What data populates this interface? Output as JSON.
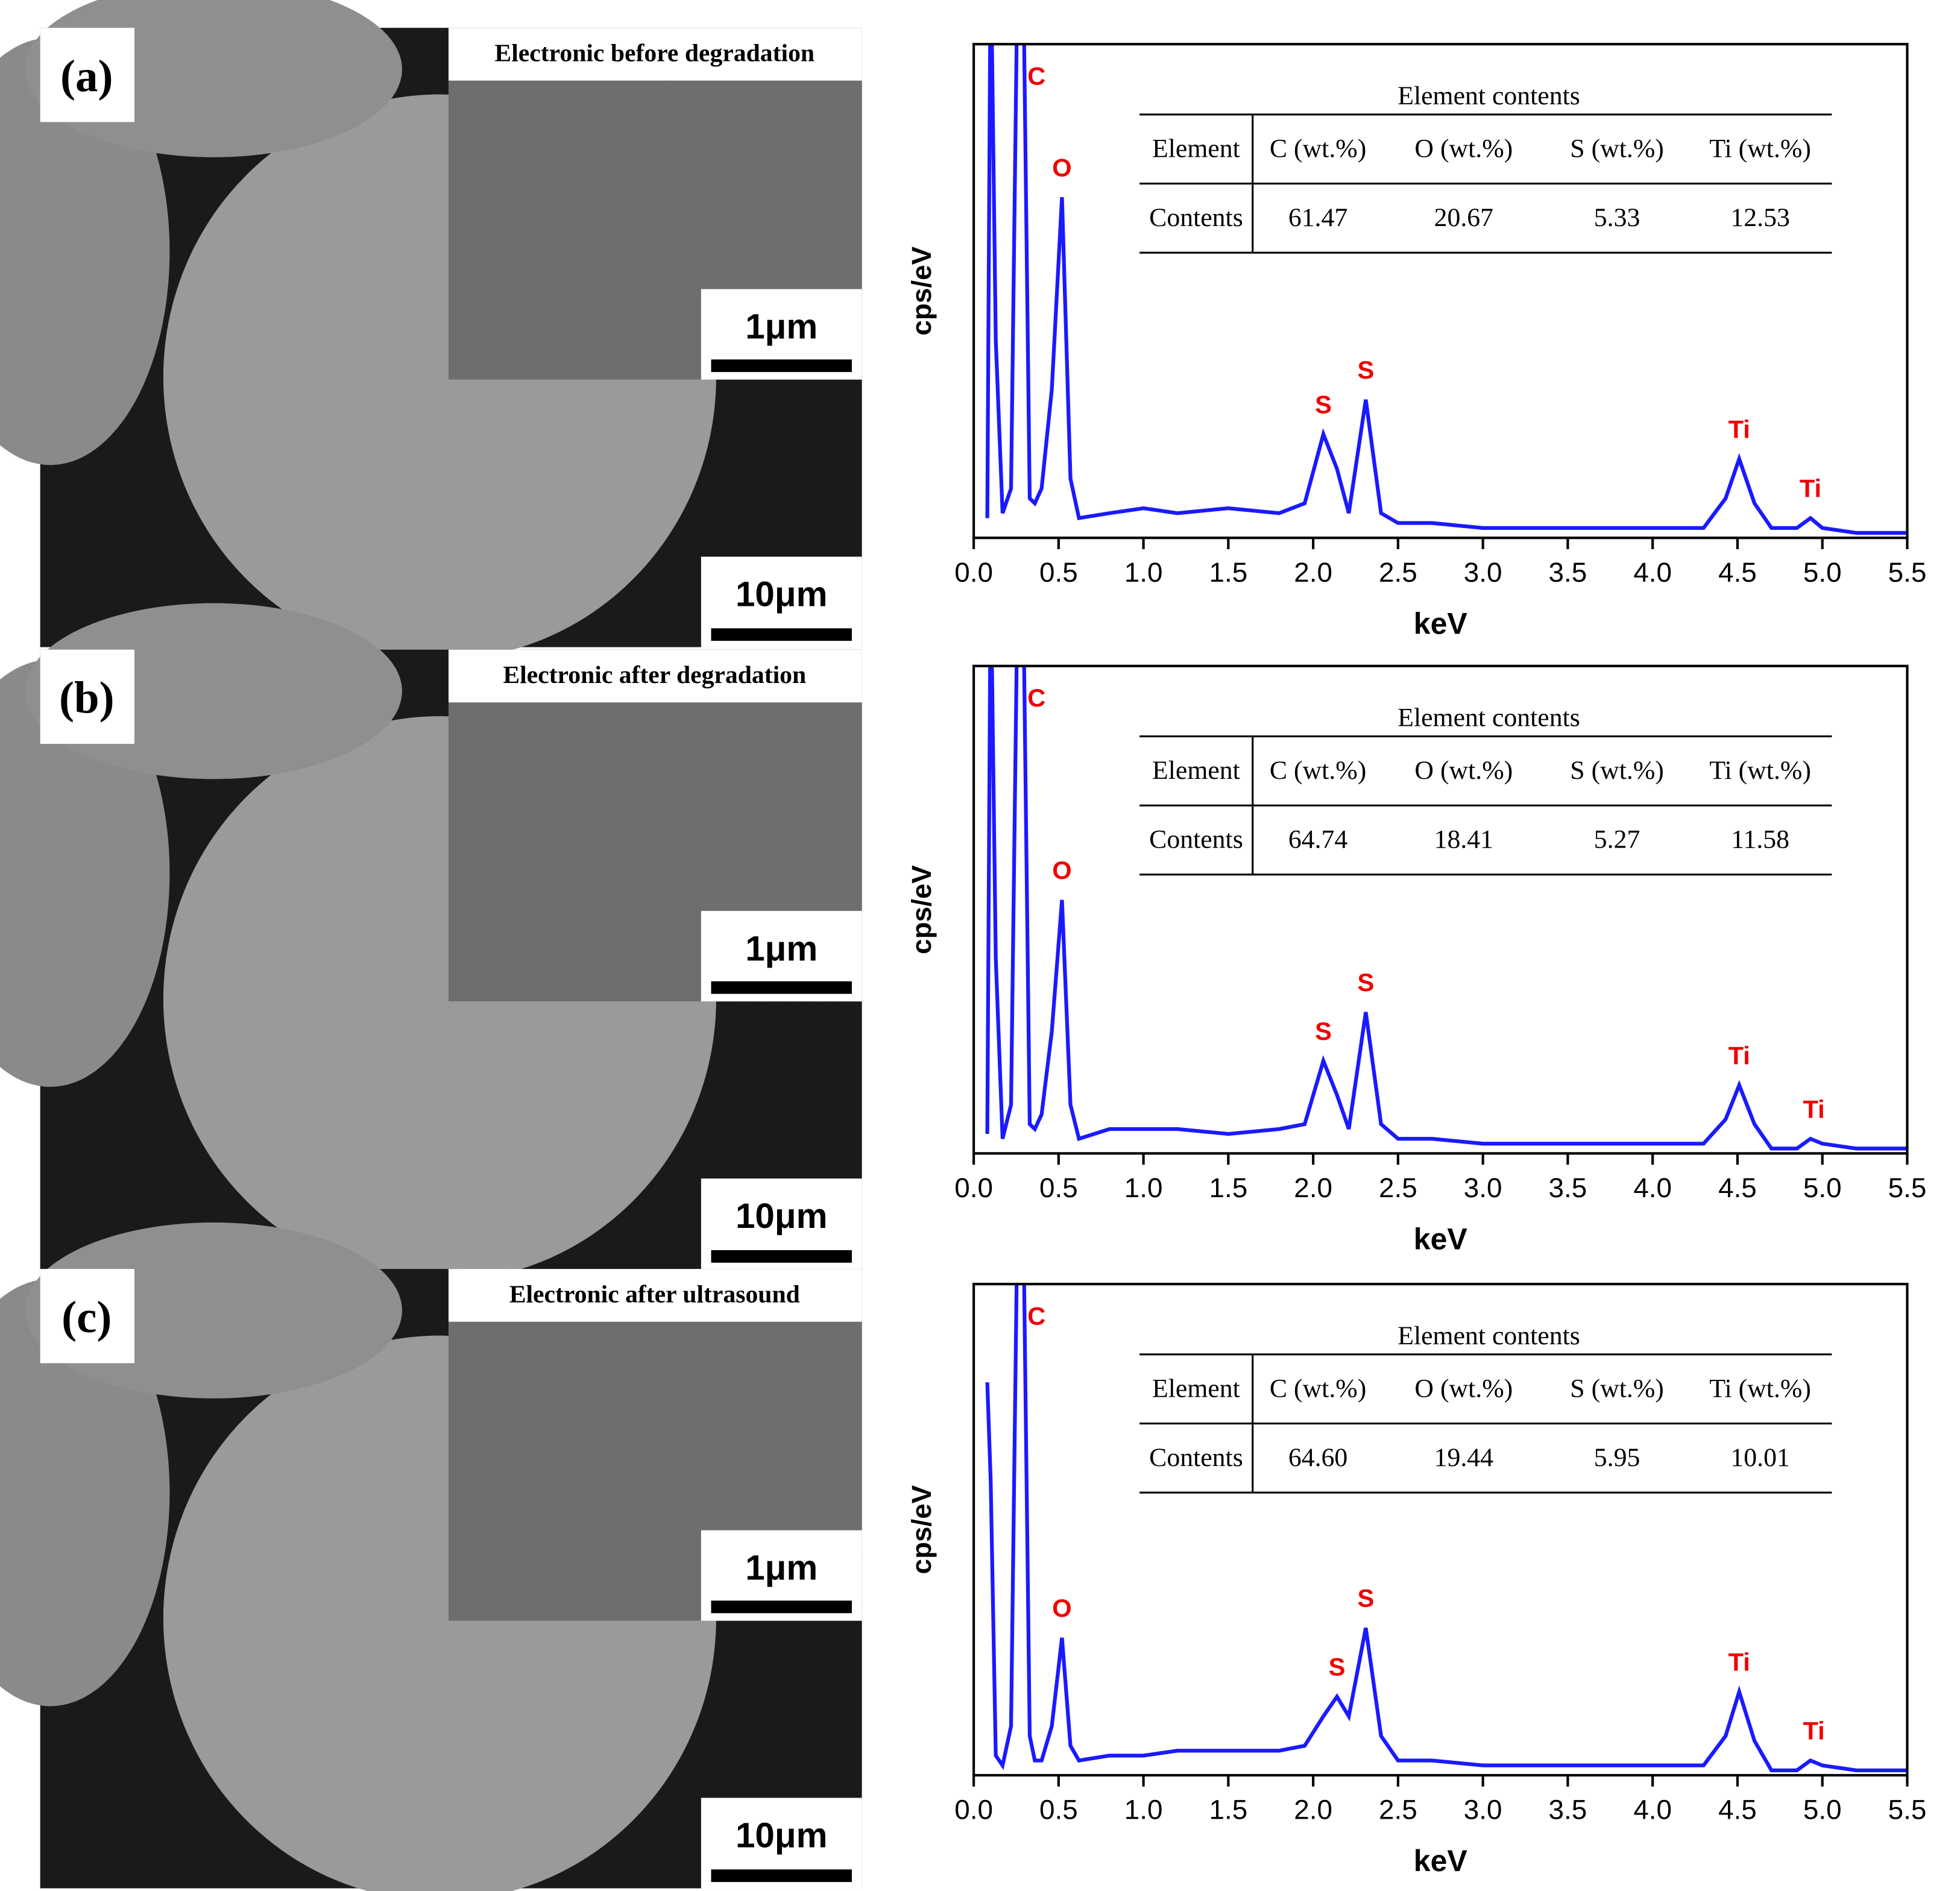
{
  "panels": [
    {
      "label": "(a)",
      "caption": "Electronic before degradation",
      "scale_inset": "1μm",
      "scale_main": "10μm"
    },
    {
      "label": "(b)",
      "caption": "Electronic after degradation",
      "scale_inset": "1μm",
      "scale_main": "10μm"
    },
    {
      "label": "(c)",
      "caption": "Electronic after ultrasound",
      "scale_inset": "1μm",
      "scale_main": "10μm"
    }
  ],
  "chart_data": [
    {
      "type": "line",
      "xlabel": "keV",
      "ylabel": "cps/eV",
      "color": "#1a1aff",
      "xlim": [
        0,
        5.5
      ],
      "ylim": [
        0,
        100
      ],
      "xticks": [
        {
          "value": 0,
          "label": "0.0"
        },
        0.5,
        {
          "value": 1,
          "label": "1.0"
        },
        1.5,
        {
          "value": 2,
          "label": "2.0"
        },
        2.5,
        {
          "value": 3,
          "label": "3.0"
        },
        3.5,
        {
          "value": 4,
          "label": "4.0"
        },
        4.5,
        {
          "value": 5,
          "label": "5.0"
        },
        5.5
      ],
      "x": [
        0.08,
        0.1,
        0.13,
        0.17,
        0.22,
        0.26,
        0.29,
        0.33,
        0.36,
        0.4,
        0.46,
        0.52,
        0.57,
        0.62,
        0.8,
        1.0,
        1.2,
        1.5,
        1.8,
        1.95,
        2.06,
        2.14,
        2.21,
        2.31,
        2.4,
        2.5,
        2.7,
        3.0,
        3.5,
        4.0,
        4.3,
        4.43,
        4.51,
        4.6,
        4.7,
        4.85,
        4.93,
        5.0,
        5.2,
        5.5
      ],
      "values": [
        4,
        120,
        40,
        5,
        10,
        120,
        120,
        8,
        7,
        10,
        30,
        69,
        12,
        4,
        5,
        6,
        5,
        6,
        5,
        7,
        21,
        14,
        5,
        28,
        5,
        3,
        3,
        2,
        2,
        2,
        2,
        8,
        16,
        7,
        2,
        2,
        4,
        2,
        1,
        1
      ],
      "peak_labels": [
        {
          "label": "C",
          "x": 0.37
        },
        {
          "label": "O",
          "x": 0.52
        },
        {
          "label": "S",
          "x": 2.06
        },
        {
          "label": "S",
          "x": 2.31
        },
        {
          "label": "Ti",
          "x": 4.51
        },
        {
          "label": "Ti",
          "x": 4.93
        }
      ],
      "table": {
        "title": "Element contents",
        "header": [
          "Element",
          "C (wt.%)",
          "O (wt.%)",
          "S (wt.%)",
          "Ti (wt.%)"
        ],
        "rows": [
          [
            "Contents",
            "61.47",
            "20.67",
            "5.33",
            "12.53"
          ]
        ]
      }
    },
    {
      "type": "line",
      "xlabel": "keV",
      "ylabel": "cps/eV",
      "color": "#1a1aff",
      "xlim": [
        0,
        5.5
      ],
      "ylim": [
        0,
        100
      ],
      "xticks": [
        {
          "value": 0,
          "label": "0.0"
        },
        0.5,
        {
          "value": 1,
          "label": "1.0"
        },
        1.5,
        {
          "value": 2,
          "label": "2.0"
        },
        2.5,
        {
          "value": 3,
          "label": "3.0"
        },
        3.5,
        {
          "value": 4,
          "label": "4.0"
        },
        4.5,
        {
          "value": 5,
          "label": "5.0"
        },
        5.5
      ],
      "x": [
        0.08,
        0.1,
        0.13,
        0.17,
        0.22,
        0.26,
        0.29,
        0.33,
        0.36,
        0.4,
        0.46,
        0.52,
        0.57,
        0.62,
        0.8,
        1.0,
        1.2,
        1.5,
        1.8,
        1.95,
        2.06,
        2.14,
        2.21,
        2.31,
        2.4,
        2.5,
        2.7,
        3.0,
        3.5,
        4.0,
        4.3,
        4.43,
        4.51,
        4.6,
        4.7,
        4.85,
        4.93,
        5.0,
        5.2,
        5.5
      ],
      "values": [
        4,
        120,
        40,
        3,
        10,
        120,
        120,
        6,
        5,
        8,
        25,
        52,
        10,
        3,
        5,
        5,
        5,
        4,
        5,
        6,
        19,
        12,
        5,
        29,
        6,
        3,
        3,
        2,
        2,
        2,
        2,
        7,
        14,
        6,
        1,
        1,
        3,
        2,
        1,
        1
      ],
      "peak_labels": [
        {
          "label": "C",
          "x": 0.37
        },
        {
          "label": "O",
          "x": 0.52
        },
        {
          "label": "S",
          "x": 2.06
        },
        {
          "label": "S",
          "x": 2.31
        },
        {
          "label": "Ti",
          "x": 4.51
        },
        {
          "label": "Ti",
          "x": 4.95
        }
      ],
      "table": {
        "title": "Element contents",
        "header": [
          "Element",
          "C (wt.%)",
          "O (wt.%)",
          "S (wt.%)",
          "Ti (wt.%)"
        ],
        "rows": [
          [
            "Contents",
            "64.74",
            "18.41",
            "5.27",
            "11.58"
          ]
        ]
      }
    },
    {
      "type": "line",
      "xlabel": "keV",
      "ylabel": "cps/eV",
      "color": "#1a1aff",
      "xlim": [
        0,
        5.5
      ],
      "ylim": [
        0,
        100
      ],
      "xticks": [
        {
          "value": 0,
          "label": "0.0"
        },
        0.5,
        {
          "value": 1,
          "label": "1.0"
        },
        1.5,
        {
          "value": 2,
          "label": "2.0"
        },
        2.5,
        {
          "value": 3,
          "label": "3.0"
        },
        3.5,
        {
          "value": 4,
          "label": "4.0"
        },
        4.5,
        {
          "value": 5,
          "label": "5.0"
        },
        5.5
      ],
      "x": [
        0.08,
        0.1,
        0.13,
        0.17,
        0.22,
        0.26,
        0.29,
        0.33,
        0.36,
        0.4,
        0.46,
        0.52,
        0.57,
        0.62,
        0.8,
        1.0,
        1.2,
        1.5,
        1.8,
        1.95,
        2.06,
        2.14,
        2.21,
        2.31,
        2.4,
        2.5,
        2.7,
        3.0,
        3.5,
        4.0,
        4.3,
        4.43,
        4.51,
        4.6,
        4.7,
        4.85,
        4.93,
        5.0,
        5.2,
        5.5
      ],
      "values": [
        80,
        60,
        4,
        2,
        10,
        120,
        120,
        8,
        3,
        3,
        10,
        28,
        6,
        3,
        4,
        4,
        5,
        5,
        5,
        6,
        12,
        16,
        12,
        30,
        8,
        3,
        3,
        2,
        2,
        2,
        2,
        8,
        17,
        7,
        1,
        1,
        3,
        2,
        1,
        1
      ],
      "peak_labels": [
        {
          "label": "C",
          "x": 0.37
        },
        {
          "label": "O",
          "x": 0.52
        },
        {
          "label": "S",
          "x": 2.14
        },
        {
          "label": "S",
          "x": 2.31
        },
        {
          "label": "Ti",
          "x": 4.51
        },
        {
          "label": "Ti",
          "x": 4.95
        }
      ],
      "table": {
        "title": "Element contents",
        "header": [
          "Element",
          "C (wt.%)",
          "O (wt.%)",
          "S (wt.%)",
          "Ti (wt.%)"
        ],
        "rows": [
          [
            "Contents",
            "64.60",
            "19.44",
            "5.95",
            "10.01"
          ]
        ]
      }
    }
  ]
}
